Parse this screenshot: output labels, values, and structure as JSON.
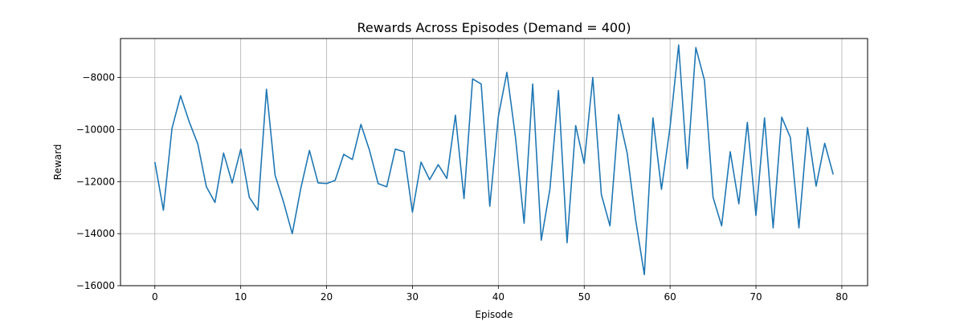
{
  "chart_data": {
    "type": "line",
    "title": "Rewards Across Episodes (Demand = 400)",
    "xlabel": "Episode",
    "ylabel": "Reward",
    "xlim": [
      -4,
      83
    ],
    "ylim": [
      -16000,
      -6500
    ],
    "xticks": [
      0,
      10,
      20,
      30,
      40,
      50,
      60,
      70,
      80
    ],
    "yticks": [
      -16000,
      -14000,
      -12000,
      -10000,
      -8000
    ],
    "ytick_labels": [
      "−16000",
      "−14000",
      "−12000",
      "−10000",
      "−8000"
    ],
    "grid": true,
    "series": [
      {
        "color": "#1f77b4",
        "x": [
          0,
          1,
          2,
          3,
          4,
          5,
          6,
          7,
          8,
          9,
          10,
          11,
          12,
          13,
          14,
          15,
          16,
          17,
          18,
          19,
          20,
          21,
          22,
          23,
          24,
          25,
          26,
          27,
          28,
          29,
          30,
          31,
          32,
          33,
          34,
          35,
          36,
          37,
          38,
          39,
          40,
          41,
          42,
          43,
          44,
          45,
          46,
          47,
          48,
          49,
          50,
          51,
          52,
          53,
          54,
          55,
          56,
          57,
          58,
          59,
          60,
          61,
          62,
          63,
          64,
          65,
          66,
          67,
          68,
          69,
          70,
          71,
          72,
          73,
          74,
          75,
          76,
          77,
          78,
          79
        ],
        "values": [
          -11250,
          -13100,
          -9950,
          -8700,
          -9700,
          -10550,
          -12200,
          -12800,
          -10900,
          -12050,
          -10750,
          -12600,
          -13100,
          -8450,
          -11750,
          -12800,
          -14000,
          -12250,
          -10800,
          -12050,
          -12075,
          -11950,
          -10950,
          -11150,
          -9800,
          -10800,
          -12075,
          -12200,
          -10750,
          -10850,
          -13175,
          -11250,
          -11925,
          -11350,
          -11875,
          -9450,
          -12650,
          -8050,
          -8250,
          -12950,
          -9500,
          -7800,
          -10300,
          -13600,
          -8250,
          -14250,
          -12300,
          -8500,
          -14350,
          -9850,
          -11300,
          -8000,
          -12500,
          -13700,
          -9425,
          -10900,
          -13500,
          -15575,
          -9550,
          -12300,
          -9900,
          -6750,
          -11500,
          -6850,
          -8100,
          -12600,
          -13700,
          -10850,
          -12850,
          -9725,
          -13300,
          -9550,
          -13775,
          -9525,
          -10300,
          -13775,
          -9925,
          -12175,
          -10525,
          -11725
        ]
      }
    ]
  }
}
